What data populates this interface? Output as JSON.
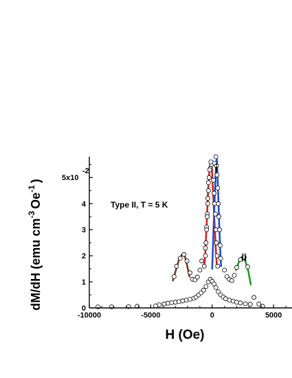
{
  "chart_data": {
    "type": "scatter",
    "xlabel": "H (Oe)",
    "ylabel_main": "dM/dH (emu cm",
    "ylabel_exp1": "-3",
    "ylabel_mid": "Oe",
    "ylabel_exp2": "-1",
    "ylabel_end": ")",
    "xlim": [
      -10000,
      6500
    ],
    "ylim": [
      0,
      5.8
    ],
    "x_ticks": [
      {
        "value": -10000,
        "label": "-10000"
      },
      {
        "value": -5000,
        "label": "-5000"
      },
      {
        "value": 0,
        "label": "0"
      },
      {
        "value": 5000,
        "label": "5000"
      }
    ],
    "y_ticks": [
      {
        "value": 0,
        "label": "0"
      },
      {
        "value": 1,
        "label": "1"
      },
      {
        "value": 2,
        "label": "2"
      },
      {
        "value": 3,
        "label": "3"
      },
      {
        "value": 4,
        "label": "4"
      }
    ],
    "y_scale_label": {
      "mantissa": "5x10",
      "exponent": "-2"
    },
    "annotations": [
      {
        "text": "Type II, T = 5 K",
        "x": -8500,
        "y": 3.9
      },
      {
        "text": "i",
        "x": 900,
        "y": 5.25
      },
      {
        "text": "ii",
        "x": 3400,
        "y": 1.8
      }
    ],
    "series": [
      {
        "kind": "markers",
        "color": "#ffffff",
        "stroke": "#000000",
        "points": [
          [
            -9300,
            0.04
          ],
          [
            -8200,
            0.04
          ],
          [
            -6800,
            0.05
          ],
          [
            -6100,
            0.06
          ],
          [
            -4600,
            0.08
          ],
          [
            -4300,
            0.12
          ],
          [
            -3900,
            0.15
          ],
          [
            -3600,
            0.18
          ],
          [
            -3300,
            0.2
          ],
          [
            -3000,
            0.22
          ],
          [
            -2700,
            0.24
          ],
          [
            -2400,
            0.27
          ],
          [
            -2100,
            0.3
          ],
          [
            -1800,
            0.33
          ],
          [
            -1500,
            0.37
          ],
          [
            -1300,
            0.42
          ],
          [
            -1100,
            0.5
          ],
          [
            -900,
            0.58
          ],
          [
            -700,
            0.68
          ],
          [
            -500,
            0.82
          ],
          [
            -300,
            1.0
          ],
          [
            -150,
            1.1
          ],
          [
            0,
            1.02
          ],
          [
            150,
            0.92
          ],
          [
            300,
            0.78
          ],
          [
            500,
            0.62
          ],
          [
            700,
            0.5
          ],
          [
            900,
            0.42
          ],
          [
            1100,
            0.35
          ],
          [
            1400,
            0.3
          ],
          [
            1700,
            0.26
          ],
          [
            2000,
            0.22
          ],
          [
            2300,
            0.19
          ],
          [
            2700,
            0.16
          ],
          [
            3100,
            0.14
          ],
          [
            3400,
            0.4
          ],
          [
            3800,
            0.15
          ],
          [
            4100,
            0.06
          ],
          [
            6700,
            0.04
          ],
          [
            -3100,
            1.2
          ],
          [
            -2900,
            1.6
          ],
          [
            -2600,
            1.9
          ],
          [
            -2300,
            2.05
          ],
          [
            -2050,
            1.8
          ],
          [
            -1800,
            1.35
          ],
          [
            -1600,
            1.1
          ],
          [
            -1400,
            1.08
          ],
          [
            -1200,
            1.18
          ],
          [
            -1000,
            1.45
          ],
          [
            -850,
            1.8
          ],
          [
            1000,
            1.45
          ],
          [
            1200,
            1.2
          ],
          [
            1400,
            1.1
          ],
          [
            1600,
            1.05
          ],
          [
            1800,
            1.25
          ],
          [
            2000,
            1.55
          ],
          [
            2300,
            1.85
          ],
          [
            2600,
            1.95
          ],
          [
            2900,
            1.58
          ],
          [
            -550,
            2.3
          ],
          [
            -450,
            3.1
          ],
          [
            -400,
            3.6
          ],
          [
            -350,
            4.0
          ],
          [
            -300,
            4.5
          ],
          [
            -250,
            5.0
          ],
          [
            -150,
            5.35
          ],
          [
            -50,
            5.5
          ],
          [
            -650,
            1.6
          ],
          [
            -550,
            2.0
          ],
          [
            -500,
            2.5
          ],
          [
            -450,
            3.0
          ],
          [
            -400,
            3.5
          ],
          [
            -350,
            4.2
          ],
          [
            -300,
            4.8
          ],
          [
            -200,
            5.3
          ],
          [
            -100,
            5.6
          ],
          [
            100,
            4.9
          ],
          [
            150,
            4.4
          ],
          [
            200,
            4.0
          ],
          [
            250,
            3.6
          ],
          [
            300,
            3.0
          ],
          [
            350,
            2.5
          ],
          [
            400,
            2.0
          ],
          [
            450,
            1.6
          ],
          [
            200,
            5.55
          ],
          [
            300,
            5.8
          ],
          [
            350,
            5.45
          ],
          [
            400,
            5.1
          ],
          [
            450,
            4.6
          ],
          [
            500,
            4.0
          ],
          [
            550,
            3.5
          ],
          [
            600,
            3.0
          ],
          [
            650,
            2.4
          ],
          [
            700,
            1.9
          ]
        ]
      },
      {
        "kind": "line",
        "color": "#d42020",
        "points": [
          [
            -650,
            1.55
          ],
          [
            -550,
            2.2
          ],
          [
            -480,
            2.9
          ],
          [
            -420,
            3.5
          ],
          [
            -370,
            4.1
          ],
          [
            -320,
            4.6
          ],
          [
            -250,
            5.1
          ],
          [
            -180,
            5.45
          ],
          [
            -100,
            5.62
          ],
          [
            -30,
            5.4
          ],
          [
            30,
            4.9
          ],
          [
            90,
            4.3
          ],
          [
            160,
            3.6
          ],
          [
            230,
            2.9
          ],
          [
            300,
            2.2
          ],
          [
            380,
            1.65
          ]
        ]
      },
      {
        "kind": "line",
        "color": "#1f4fd2",
        "points": [
          [
            0,
            1.5
          ],
          [
            60,
            2.3
          ],
          [
            120,
            3.1
          ],
          [
            180,
            3.9
          ],
          [
            240,
            4.6
          ],
          [
            290,
            5.2
          ],
          [
            330,
            5.6
          ],
          [
            380,
            5.7
          ],
          [
            430,
            5.1
          ],
          [
            480,
            4.5
          ],
          [
            530,
            3.8
          ],
          [
            580,
            3.1
          ],
          [
            630,
            2.5
          ],
          [
            680,
            2.0
          ],
          [
            730,
            1.6
          ]
        ]
      },
      {
        "kind": "line",
        "color": "#7a3b1e",
        "points": [
          [
            -3200,
            1.05
          ],
          [
            -2950,
            1.45
          ],
          [
            -2700,
            1.85
          ],
          [
            -2450,
            2.05
          ],
          [
            -2200,
            1.95
          ],
          [
            -2000,
            1.55
          ],
          [
            -1850,
            1.2
          ]
        ]
      },
      {
        "kind": "line",
        "color": "#1f9a25",
        "points": [
          [
            1950,
            1.45
          ],
          [
            2200,
            1.8
          ],
          [
            2450,
            1.98
          ],
          [
            2700,
            1.8
          ],
          [
            2950,
            1.4
          ],
          [
            3150,
            0.9
          ]
        ]
      }
    ]
  }
}
